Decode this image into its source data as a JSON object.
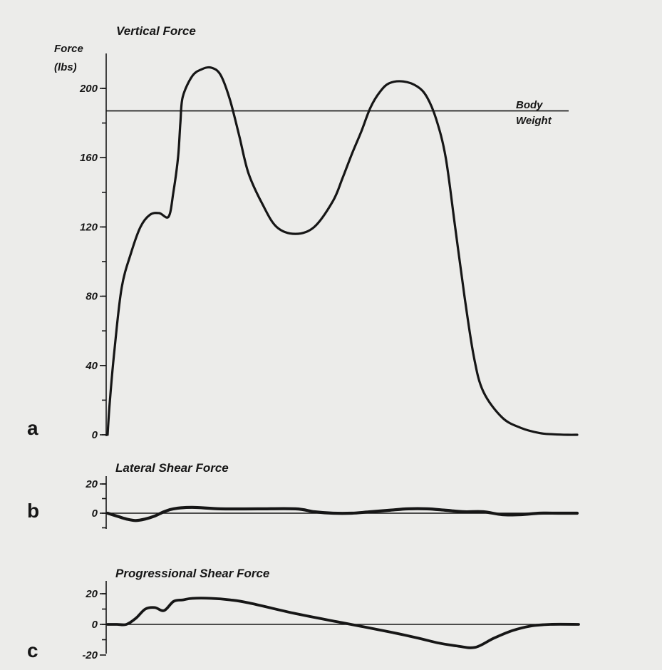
{
  "chart_data": [
    {
      "type": "line",
      "panel_label": "a",
      "title": "Vertical Force",
      "ylabel_line1": "Force",
      "ylabel_line2": "(lbs)",
      "ylim": [
        0,
        215
      ],
      "yticks": [
        "0",
        "40",
        "80",
        "120",
        "160",
        "200"
      ],
      "reference_line": {
        "label_line1": "Body",
        "label_line2": "Weight",
        "y": 187
      },
      "series": [
        {
          "x": [
            0,
            0.5,
            1.5,
            3,
            5,
            7,
            9,
            11,
            13,
            14,
            15,
            15.5,
            16,
            18,
            20,
            22,
            24,
            26,
            28,
            30,
            33,
            36,
            40,
            44,
            48,
            50,
            52,
            54,
            56,
            58,
            60,
            63,
            66,
            68,
            70,
            72,
            74,
            76,
            78,
            80,
            84,
            88,
            92,
            95,
            98,
            100
          ],
          "y": [
            0,
            20,
            50,
            85,
            105,
            120,
            127,
            128,
            126,
            140,
            160,
            180,
            195,
            207,
            211,
            212,
            208,
            194,
            173,
            151,
            133,
            120,
            116,
            120,
            135,
            148,
            162,
            175,
            189,
            198,
            203,
            204,
            201,
            195,
            182,
            160,
            120,
            80,
            45,
            25,
            10,
            4,
            1,
            0.3,
            0,
            0
          ]
        }
      ]
    },
    {
      "type": "line",
      "panel_label": "b",
      "title": "Lateral Shear Force",
      "ylim": [
        -10,
        22
      ],
      "yticks": [
        "0",
        "20"
      ],
      "series": [
        {
          "x": [
            0,
            2,
            4,
            6,
            8,
            10,
            12,
            14,
            18,
            24,
            32,
            40,
            44,
            48,
            52,
            56,
            60,
            64,
            68,
            72,
            76,
            80,
            84,
            88,
            92,
            96,
            100
          ],
          "y": [
            0,
            -2,
            -4,
            -5,
            -4,
            -2,
            1,
            3,
            4,
            3,
            3,
            3,
            1,
            0,
            0,
            1,
            2,
            3,
            3,
            2,
            1,
            1,
            -1,
            -1,
            0,
            0,
            0
          ]
        }
      ]
    },
    {
      "type": "line",
      "panel_label": "c",
      "title": "Progressional Shear Force",
      "ylim": [
        -20,
        25
      ],
      "yticks": [
        "0",
        "20",
        "-20"
      ],
      "series": [
        {
          "x": [
            0,
            2,
            4,
            6,
            8,
            10,
            12,
            14,
            16,
            18,
            22,
            26,
            30,
            40,
            50,
            60,
            66,
            70,
            74,
            78,
            82,
            86,
            90,
            94,
            100
          ],
          "y": [
            0,
            0,
            0,
            4,
            10,
            11,
            9,
            15,
            16,
            17,
            17,
            16,
            14,
            7,
            1,
            -5,
            -9,
            -12,
            -14,
            -15,
            -9,
            -4,
            -1,
            0,
            0
          ]
        }
      ]
    }
  ]
}
